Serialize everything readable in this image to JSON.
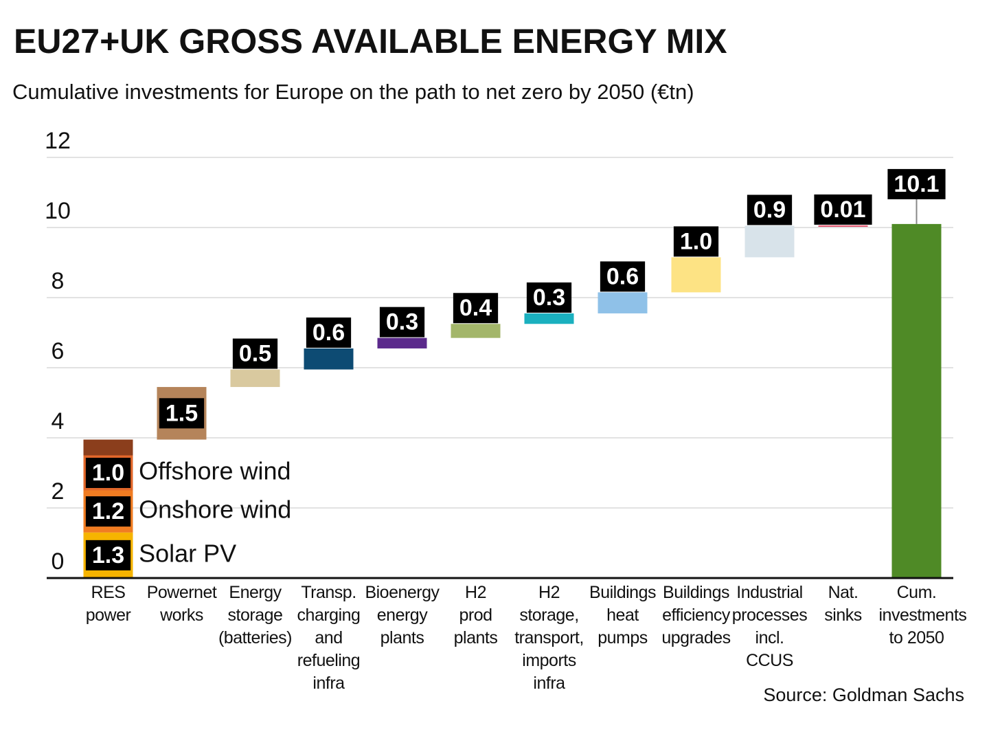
{
  "chart_data": {
    "type": "waterfall",
    "title": "EU27+UK GROSS AVAILABLE ENERGY MIX",
    "subtitle": "Cumulative investments for Europe on the path to net zero by 2050 (€tn)",
    "source": "Source: Goldman Sachs",
    "ylim": [
      0,
      12
    ],
    "yticks": [
      0,
      2,
      4,
      6,
      8,
      10,
      12
    ],
    "grid": true,
    "categories": [
      "RES\npower",
      "Powernet\nworks",
      "Energy\nstorage\n(batteries)",
      "Transp.\ncharging\nand\nrefueling\ninfra",
      "Bioenergy\nenergy\nplants",
      "H2\nprod\nplants",
      "H2\nstorage,\ntransport,\nimports\ninfra",
      "Buildings\nheat\npumps",
      "Buildings\nefficiency\nupgrades",
      "Industrial\nprocesses\nincl.\nCCUS",
      "Nat.\nsinks",
      "Cum.\ninvestments\nto 2050"
    ],
    "steps": [
      {
        "segments": [
          {
            "name": "Solar PV",
            "value": 1.3,
            "color": "#f6b400"
          },
          {
            "name": "Onshore wind",
            "value": 1.2,
            "color": "#f07c22"
          },
          {
            "name": "Offshore wind",
            "value": 1.0,
            "value_label": "1.0",
            "color": "#e2672a"
          },
          {
            "value": 0.45,
            "color": "#8b3e1c"
          }
        ]
      },
      {
        "segments": [
          {
            "value": 1.5,
            "color": "#b5845a"
          }
        ]
      },
      {
        "segments": [
          {
            "value": 0.5,
            "color": "#d9c99f"
          }
        ]
      },
      {
        "segments": [
          {
            "value": 0.6,
            "color": "#0d4b73"
          }
        ]
      },
      {
        "segments": [
          {
            "value": 0.3,
            "color": "#5b2a8c"
          }
        ]
      },
      {
        "segments": [
          {
            "value": 0.4,
            "color": "#a3b66a"
          }
        ]
      },
      {
        "segments": [
          {
            "value": 0.3,
            "color": "#1bb0bf"
          }
        ]
      },
      {
        "segments": [
          {
            "value": 0.6,
            "color": "#8fc1e8"
          }
        ]
      },
      {
        "segments": [
          {
            "value": 1.0,
            "value_label": "1.0",
            "color": "#fde384"
          }
        ]
      },
      {
        "segments": [
          {
            "value": 0.9,
            "color": "#d8e3ea"
          }
        ]
      },
      {
        "segments": [
          {
            "value": 0.01,
            "color": "#e0506a"
          }
        ]
      }
    ],
    "total": {
      "value": 10.1,
      "color": "#4f8a26"
    }
  }
}
